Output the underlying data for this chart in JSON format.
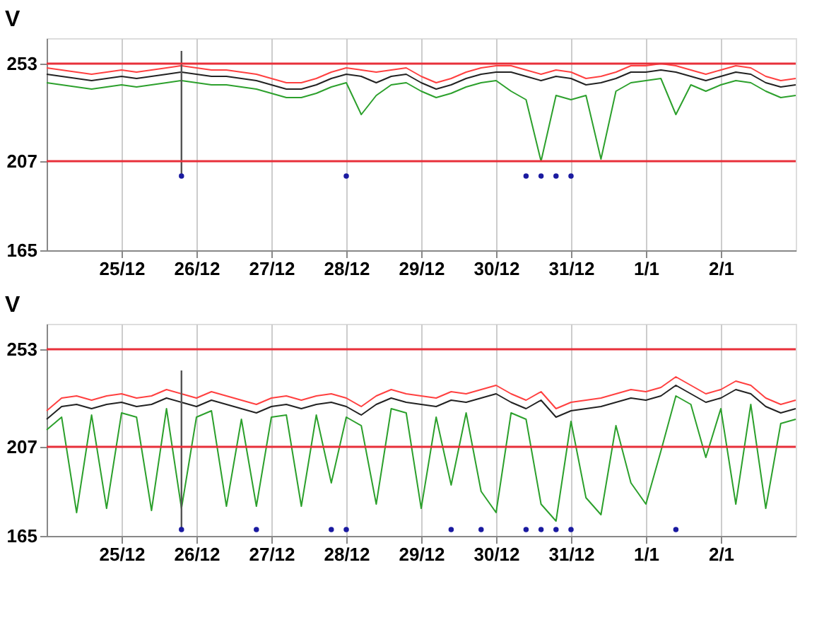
{
  "chart_data": [
    {
      "type": "line",
      "ylabel": "V",
      "grid": true,
      "marker": "none",
      "line_style": "solid",
      "categories": [
        null,
        null,
        null,
        null,
        null,
        "25/12",
        null,
        null,
        null,
        null,
        "26/12",
        null,
        null,
        null,
        null,
        "27/12",
        null,
        null,
        null,
        null,
        "28/12",
        null,
        null,
        null,
        null,
        "29/12",
        null,
        null,
        null,
        null,
        "30/12",
        null,
        null,
        null,
        null,
        "31/12",
        null,
        null,
        null,
        null,
        "1/1",
        null,
        null,
        null,
        null,
        "2/1",
        null,
        null,
        null,
        null,
        null
      ],
      "ylim": [
        165,
        265
      ],
      "yticks": [
        165,
        207,
        253
      ],
      "ref_lines": [
        {
          "axis": "y",
          "value": 253,
          "color": "#e8303a"
        },
        {
          "axis": "y",
          "value": 207,
          "color": "#e8303a"
        }
      ],
      "series": [
        {
          "color": "#ff4040",
          "values": [
            251,
            250,
            249,
            248,
            249,
            250,
            249,
            250,
            251,
            252,
            251,
            250,
            250,
            249,
            248,
            246,
            244,
            244,
            246,
            249,
            251,
            250,
            249,
            250,
            251,
            247,
            244,
            246,
            249,
            251,
            252,
            252,
            250,
            248,
            250,
            249,
            246,
            247,
            249,
            252,
            252,
            253,
            252,
            250,
            248,
            250,
            252,
            251,
            247,
            245,
            246
          ]
        },
        {
          "color": "#2ca02c",
          "values": [
            244,
            243,
            242,
            241,
            242,
            243,
            242,
            243,
            244,
            245,
            244,
            243,
            243,
            242,
            241,
            239,
            237,
            237,
            239,
            242,
            244,
            229,
            238,
            243,
            244,
            240,
            237,
            239,
            242,
            244,
            245,
            240,
            236,
            207,
            238,
            236,
            238,
            208,
            240,
            244,
            245,
            246,
            229,
            243,
            240,
            243,
            245,
            244,
            240,
            237,
            238
          ]
        },
        {
          "color": "#222222",
          "values": [
            248,
            247,
            246,
            245,
            246,
            247,
            246,
            247,
            248,
            249,
            248,
            247,
            247,
            246,
            245,
            243,
            241,
            241,
            243,
            246,
            248,
            247,
            244,
            247,
            248,
            244,
            241,
            243,
            246,
            248,
            249,
            249,
            247,
            245,
            247,
            246,
            243,
            244,
            246,
            249,
            249,
            250,
            249,
            247,
            245,
            247,
            249,
            248,
            244,
            242,
            243
          ]
        },
        {
          "type": "scatter",
          "color": "#1a1aa0",
          "marker": "circle",
          "values": [
            null,
            null,
            null,
            null,
            null,
            null,
            null,
            null,
            null,
            200,
            null,
            null,
            null,
            null,
            null,
            null,
            null,
            null,
            null,
            null,
            200,
            null,
            null,
            null,
            null,
            null,
            null,
            null,
            null,
            null,
            null,
            null,
            200,
            200,
            200,
            200,
            null,
            null,
            null,
            null,
            null,
            null,
            null,
            null,
            null,
            null,
            null,
            null,
            null,
            null,
            null
          ],
          "errors": [
            null,
            null,
            null,
            null,
            null,
            null,
            null,
            null,
            null,
            [
              200,
              259
            ],
            null,
            null,
            null,
            null,
            null,
            null,
            null,
            null,
            null,
            null,
            null,
            null,
            null,
            null,
            null,
            null,
            null,
            null,
            null,
            null,
            null,
            null,
            null,
            null,
            null,
            null,
            null,
            null,
            null,
            null,
            null,
            null,
            null,
            null,
            null,
            null,
            null,
            null,
            null,
            null,
            null
          ]
        }
      ]
    },
    {
      "type": "line",
      "ylabel": "V",
      "grid": true,
      "marker": "none",
      "line_style": "solid",
      "categories": [
        null,
        null,
        null,
        null,
        null,
        "25/12",
        null,
        null,
        null,
        null,
        "26/12",
        null,
        null,
        null,
        null,
        "27/12",
        null,
        null,
        null,
        null,
        "28/12",
        null,
        null,
        null,
        null,
        "29/12",
        null,
        null,
        null,
        null,
        "30/12",
        null,
        null,
        null,
        null,
        "31/12",
        null,
        null,
        null,
        null,
        "1/1",
        null,
        null,
        null,
        null,
        "2/1",
        null,
        null,
        null,
        null,
        null
      ],
      "ylim": [
        165,
        265
      ],
      "yticks": [
        165,
        207,
        253
      ],
      "ref_lines": [
        {
          "axis": "y",
          "value": 253,
          "color": "#e8303a"
        },
        {
          "axis": "y",
          "value": 207,
          "color": "#e8303a"
        }
      ],
      "series": [
        {
          "color": "#ff4040",
          "values": [
            224,
            230,
            231,
            229,
            231,
            232,
            230,
            231,
            234,
            232,
            230,
            233,
            231,
            229,
            227,
            230,
            231,
            229,
            231,
            232,
            230,
            226,
            231,
            234,
            232,
            231,
            230,
            233,
            232,
            234,
            236,
            232,
            229,
            233,
            225,
            228,
            229,
            230,
            232,
            234,
            233,
            235,
            240,
            236,
            232,
            234,
            238,
            236,
            230,
            227,
            229
          ]
        },
        {
          "color": "#2ca02c",
          "values": [
            215,
            221,
            176,
            222,
            178,
            223,
            221,
            177,
            225,
            178,
            221,
            224,
            179,
            220,
            179,
            221,
            222,
            179,
            222,
            190,
            221,
            217,
            180,
            225,
            223,
            178,
            221,
            189,
            223,
            186,
            176,
            223,
            220,
            180,
            172,
            219,
            183,
            175,
            217,
            190,
            180,
            205,
            231,
            227,
            202,
            225,
            180,
            227,
            178,
            218,
            220
          ]
        },
        {
          "color": "#222222",
          "values": [
            220,
            226,
            227,
            225,
            227,
            228,
            226,
            227,
            230,
            228,
            226,
            229,
            227,
            225,
            223,
            226,
            227,
            225,
            227,
            228,
            226,
            222,
            227,
            230,
            228,
            227,
            226,
            229,
            228,
            230,
            232,
            228,
            225,
            229,
            221,
            224,
            225,
            226,
            228,
            230,
            229,
            231,
            236,
            232,
            228,
            230,
            234,
            232,
            226,
            223,
            225
          ]
        },
        {
          "type": "scatter",
          "color": "#1a1aa0",
          "marker": "circle",
          "values": [
            null,
            null,
            null,
            null,
            null,
            null,
            null,
            null,
            null,
            168,
            null,
            null,
            null,
            null,
            168,
            null,
            null,
            null,
            null,
            168,
            168,
            null,
            null,
            null,
            null,
            null,
            null,
            168,
            null,
            168,
            null,
            null,
            168,
            168,
            168,
            168,
            null,
            null,
            null,
            null,
            null,
            null,
            168,
            null,
            null,
            null,
            null,
            null,
            null,
            null,
            null
          ],
          "errors": [
            null,
            null,
            null,
            null,
            null,
            null,
            null,
            null,
            null,
            [
              168,
              243
            ],
            null,
            null,
            null,
            null,
            null,
            null,
            null,
            null,
            null,
            null,
            null,
            null,
            null,
            null,
            null,
            null,
            null,
            null,
            null,
            null,
            null,
            null,
            null,
            null,
            null,
            null,
            null,
            null,
            null,
            null,
            null,
            null,
            null,
            null,
            null,
            null,
            null,
            null,
            null,
            null,
            null
          ]
        }
      ]
    }
  ]
}
